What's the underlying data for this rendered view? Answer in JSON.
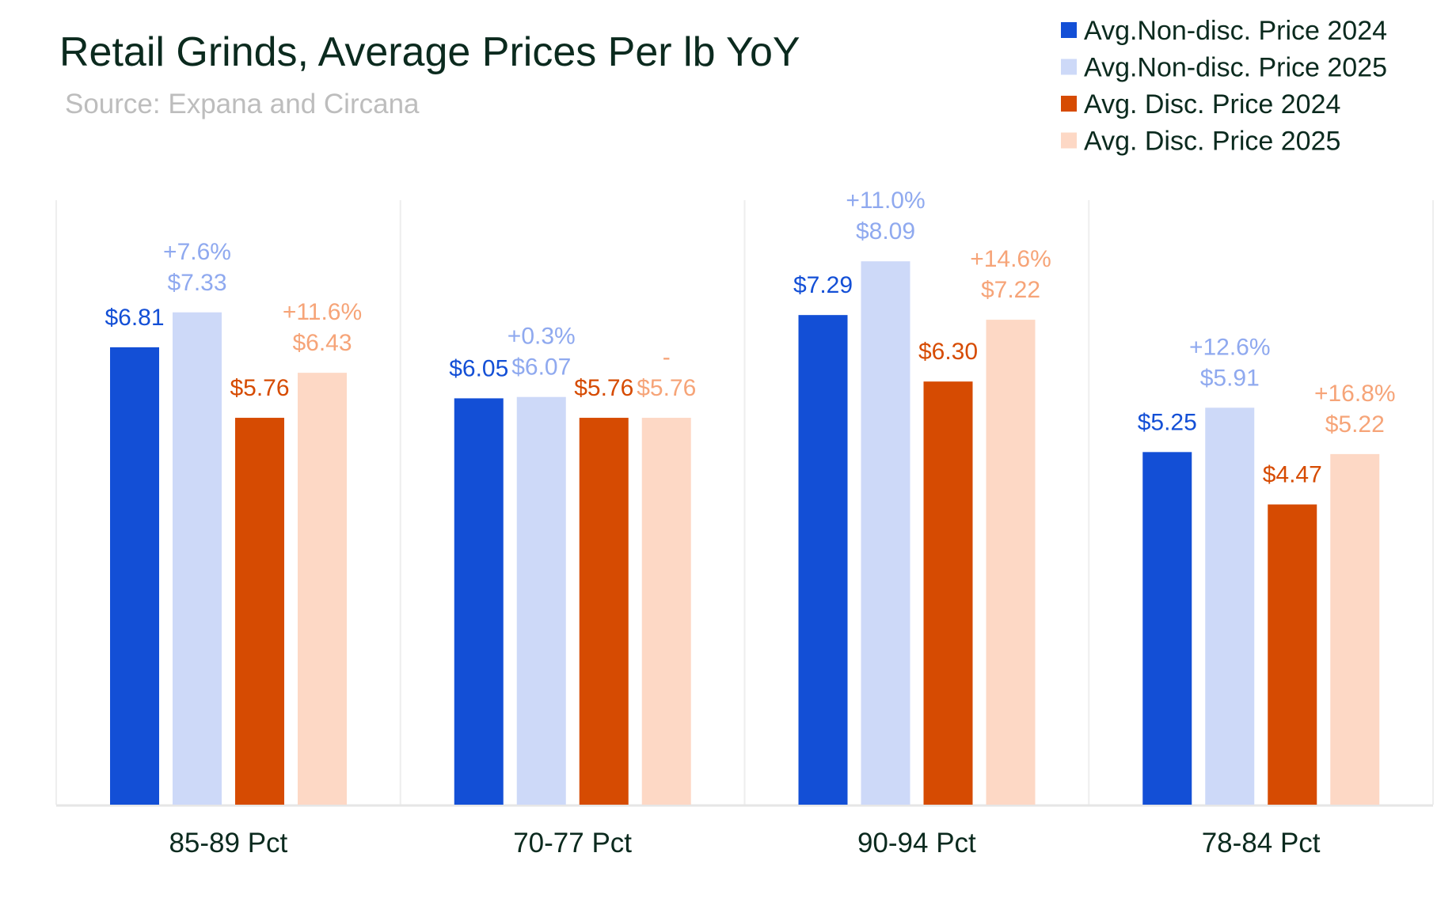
{
  "chart_data": {
    "type": "bar",
    "title": "Retail Grinds, Average Prices Per lb YoY",
    "subtitle": "Source: Expana and Circana",
    "categories": [
      "85-89 Pct",
      "70-77 Pct",
      "90-94 Pct",
      "78-84 Pct"
    ],
    "ylim": [
      0,
      9
    ],
    "grid": false,
    "legend_position": "top-right",
    "series": [
      {
        "name": "Avg.Non-disc. Price 2024",
        "color": "#134fd6",
        "label_color": "#134fd6",
        "values": [
          6.81,
          6.05,
          7.29,
          5.25
        ],
        "labels": [
          "$6.81",
          "$6.05",
          "$7.29",
          "$5.25"
        ],
        "change_labels": [
          "",
          "",
          "",
          ""
        ]
      },
      {
        "name": "Avg.Non-disc. Price 2025",
        "color": "#cdd9f8",
        "label_color": "#8fa9ef",
        "values": [
          7.33,
          6.07,
          8.09,
          5.91
        ],
        "labels": [
          "$7.33",
          "$6.07",
          "$8.09",
          "$5.91"
        ],
        "change_labels": [
          "+7.6%",
          "+0.3%",
          "+11.0%",
          "+12.6%"
        ]
      },
      {
        "name": "Avg. Disc. Price 2024",
        "color": "#d64b02",
        "label_color": "#d64b02",
        "values": [
          5.76,
          5.76,
          6.3,
          4.47
        ],
        "labels": [
          "$5.76",
          "$5.76",
          "$6.30",
          "$4.47"
        ],
        "change_labels": [
          "",
          "",
          "",
          ""
        ]
      },
      {
        "name": "Avg. Disc. Price 2025",
        "color": "#fdd8c5",
        "label_color": "#f6a478",
        "values": [
          6.43,
          5.76,
          7.22,
          5.22
        ],
        "labels": [
          "$6.43",
          "$5.76",
          "$7.22",
          "$5.22"
        ],
        "change_labels": [
          "+11.6%",
          "-",
          "+14.6%",
          "+16.8%"
        ]
      }
    ]
  }
}
